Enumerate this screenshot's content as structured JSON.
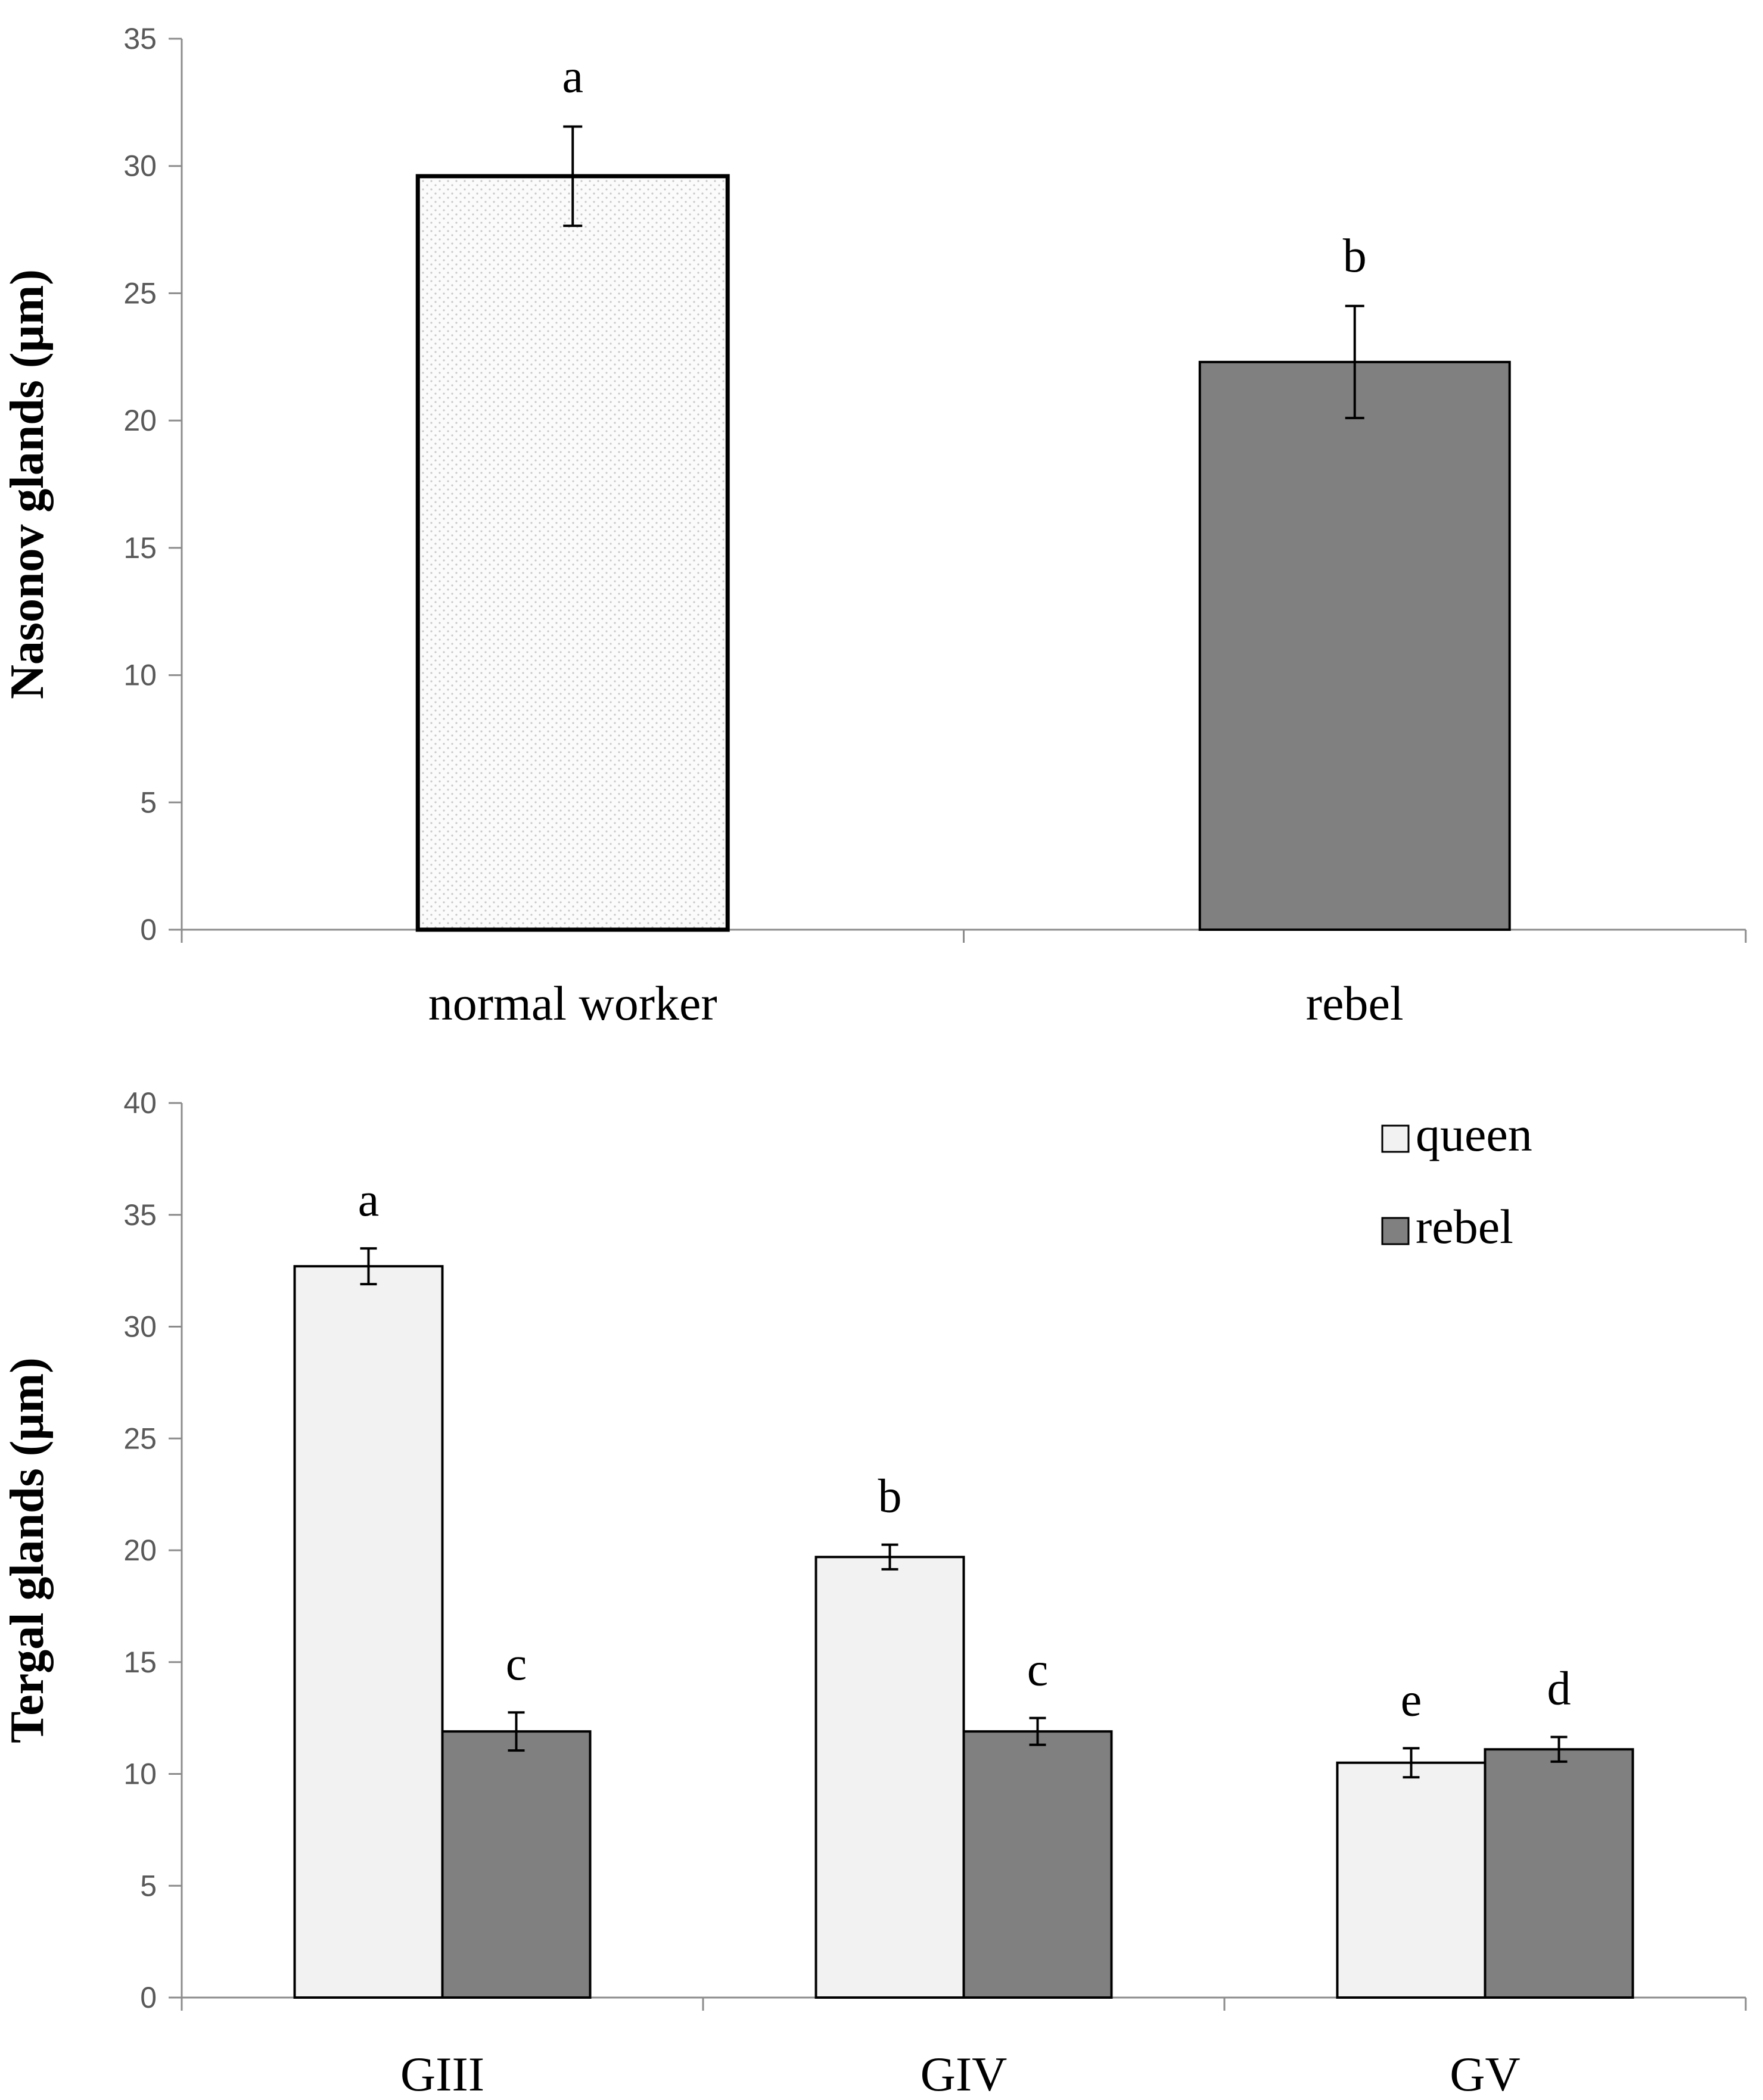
{
  "chart_data": [
    {
      "type": "bar",
      "title": "",
      "xlabel": "",
      "ylabel": "Nasonov glands (µm)",
      "ylim": [
        0,
        35
      ],
      "ytick_step": 5,
      "yticks": [
        "0",
        "5",
        "10",
        "15",
        "20",
        "25",
        "30",
        "35"
      ],
      "categories": [
        "normal worker",
        "rebel"
      ],
      "values": [
        29.6,
        22.3
      ],
      "errors": [
        1.95,
        2.2
      ],
      "significance": [
        "a",
        "b"
      ],
      "fills": [
        "#f7f7f7",
        "#808080"
      ],
      "grid": false,
      "legend": null
    },
    {
      "type": "bar",
      "title": "",
      "xlabel": "",
      "ylabel": "Tergal glands (µm)",
      "ylim": [
        0,
        40
      ],
      "ytick_step": 5,
      "yticks": [
        "0",
        "5",
        "10",
        "15",
        "20",
        "25",
        "30",
        "35",
        "40"
      ],
      "categories": [
        "GIII",
        "GIV",
        "GV"
      ],
      "series": [
        {
          "name": "queen",
          "values": [
            32.7,
            19.7,
            10.5
          ],
          "errors": [
            0.8,
            0.55,
            0.65
          ],
          "significance": [
            "a",
            "b",
            "e"
          ],
          "color": "#f2f2f2"
        },
        {
          "name": "rebel",
          "values": [
            11.9,
            11.9,
            11.1
          ],
          "errors": [
            0.85,
            0.6,
            0.55
          ],
          "significance": [
            "c",
            "c",
            "d"
          ],
          "color": "#808080"
        }
      ],
      "grid": false,
      "legend": "top-right"
    }
  ]
}
